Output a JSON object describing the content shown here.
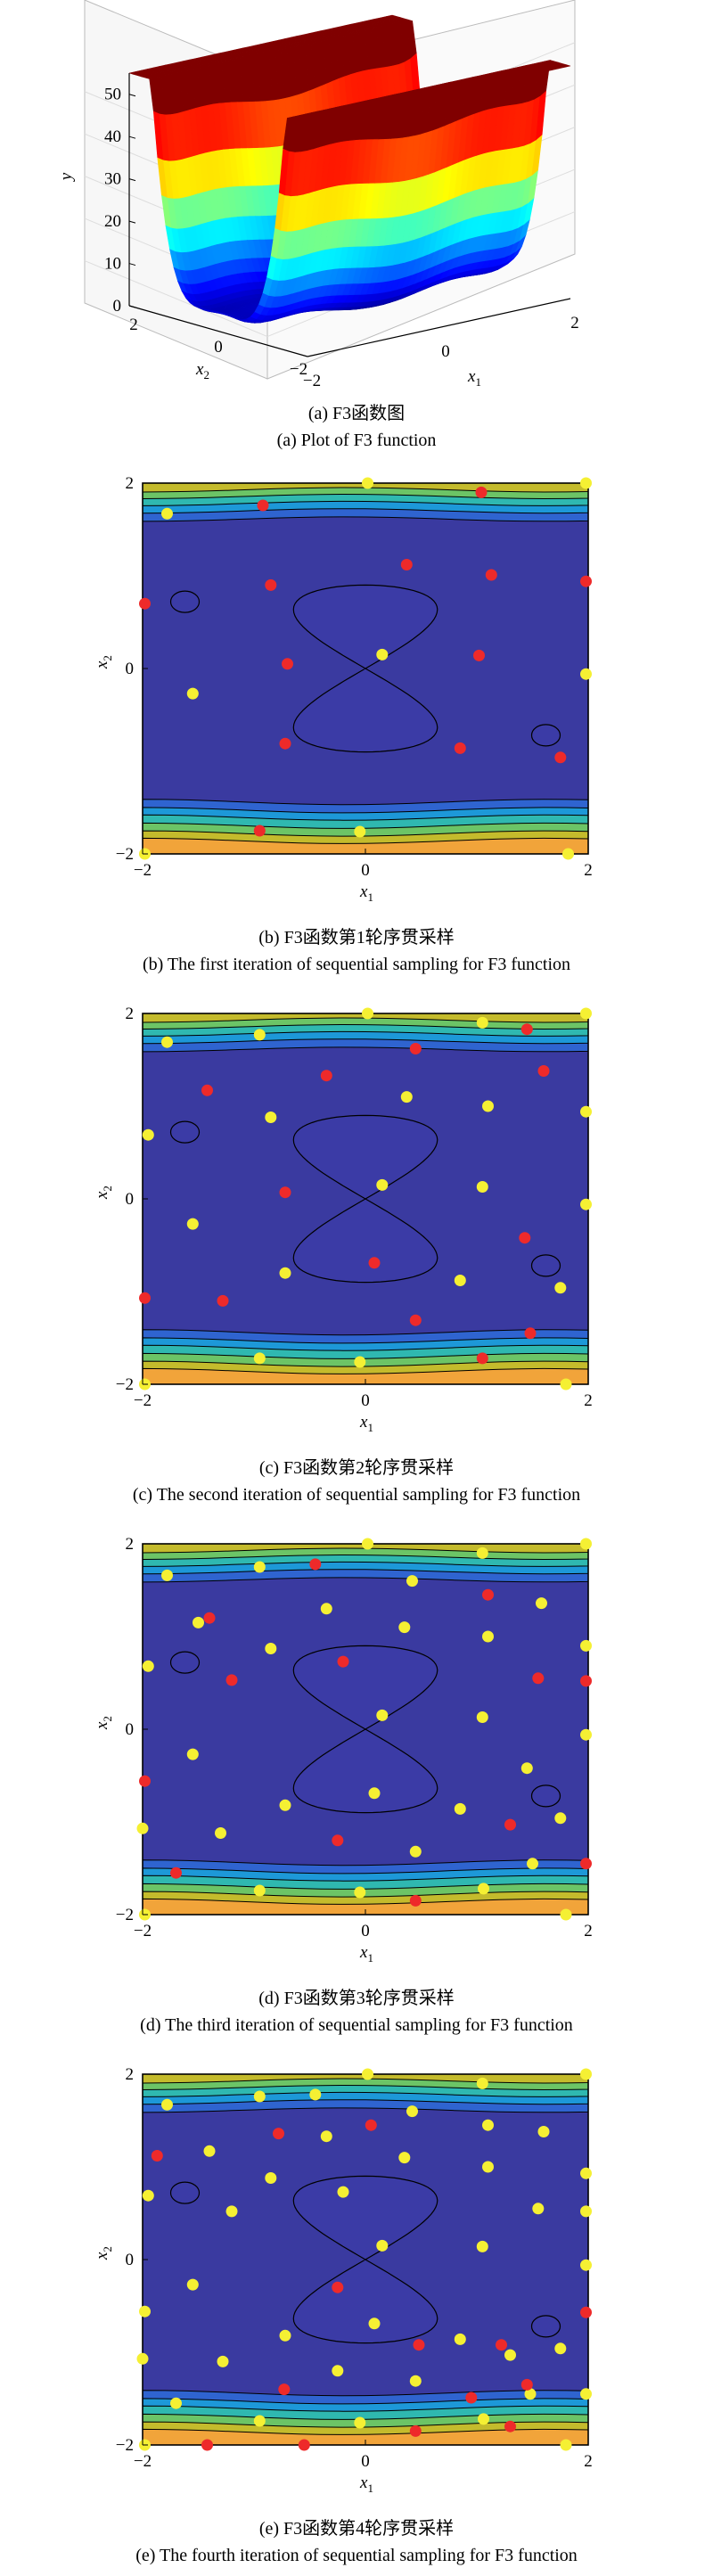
{
  "figure": {
    "panels": [
      {
        "caption_zh": "(a) F3函数图",
        "caption_en": "(a) Plot of F3 function"
      },
      {
        "caption_zh": "(b) F3函数第1轮序贯采样",
        "caption_en": "(b) The first iteration of sequential sampling for F3 function"
      },
      {
        "caption_zh": "(c) F3函数第2轮序贯采样",
        "caption_en": "(c) The second iteration of sequential sampling for F3 function"
      },
      {
        "caption_zh": "(d) F3函数第3轮序贯采样",
        "caption_en": "(d) The third iteration of sequential sampling for F3 function"
      },
      {
        "caption_zh": "(e) F3函数第4轮序贯采样",
        "caption_en": "(e) The fourth iteration of sequential sampling for F3 function"
      }
    ]
  },
  "colors": {
    "new_sample": "#ee2a2a",
    "existing_sample": "#f5f033",
    "contour_fill": [
      "#3a3aa0",
      "#2f64d0",
      "#1d98d8",
      "#2fb8b0",
      "#6cc466",
      "#c4bb2c",
      "#f1a43a",
      "#f5d222"
    ]
  },
  "chart_data": [
    {
      "type": "surface",
      "panel": "a",
      "xlabel": "x1",
      "ylabel": "x2",
      "zlabel": "y",
      "xlim": [
        -2,
        2
      ],
      "ylim": [
        -2,
        2
      ],
      "zlim": [
        0,
        55
      ],
      "x_ticks": [
        "2",
        "0",
        "-2"
      ],
      "y_ticks": [
        "-2",
        "0",
        "2"
      ],
      "z_ticks": [
        "0",
        "10",
        "20",
        "30",
        "40",
        "50"
      ],
      "colormap": "jet",
      "grid": true
    },
    {
      "type": "scatter",
      "panel": "b",
      "xlabel": "x1",
      "ylabel": "x2",
      "xlim": [
        -2,
        2
      ],
      "ylim": [
        -2,
        2
      ],
      "x_ticks": [
        "-2",
        "0",
        "2"
      ],
      "y_ticks": [
        "-2",
        "0",
        "2"
      ],
      "background": "filled contour",
      "new_points": [
        [
          -0.92,
          1.76
        ],
        [
          1.04,
          1.9
        ],
        [
          1.98,
          0.94
        ],
        [
          -0.85,
          0.9
        ],
        [
          0.37,
          1.12
        ],
        [
          1.13,
          1.01
        ],
        [
          -1.98,
          0.7
        ],
        [
          -0.7,
          0.05
        ],
        [
          1.02,
          0.14
        ],
        [
          -0.72,
          -0.81
        ],
        [
          0.85,
          -0.86
        ],
        [
          1.75,
          -0.96
        ],
        [
          -0.95,
          -1.75
        ]
      ],
      "existing_points": [
        [
          -1.78,
          1.67
        ],
        [
          0.02,
          2.0
        ],
        [
          1.98,
          2.0
        ],
        [
          0.15,
          0.15
        ],
        [
          -1.55,
          -0.27
        ],
        [
          1.98,
          -0.06
        ],
        [
          -1.98,
          -2.0
        ],
        [
          -0.05,
          -1.76
        ],
        [
          1.82,
          -2.0
        ]
      ]
    },
    {
      "type": "scatter",
      "panel": "c",
      "xlabel": "x1",
      "ylabel": "x2",
      "xlim": [
        -2,
        2
      ],
      "ylim": [
        -2,
        2
      ],
      "x_ticks": [
        "-2",
        "0",
        "2"
      ],
      "y_ticks": [
        "-2",
        "0",
        "2"
      ],
      "background": "filled contour",
      "new_points": [
        [
          1.45,
          1.83
        ],
        [
          0.45,
          1.62
        ],
        [
          -0.35,
          1.33
        ],
        [
          1.6,
          1.38
        ],
        [
          -1.42,
          1.17
        ],
        [
          -0.72,
          0.07
        ],
        [
          0.08,
          -0.69
        ],
        [
          1.43,
          -0.42
        ],
        [
          -1.98,
          -1.07
        ],
        [
          -1.28,
          -1.1
        ],
        [
          0.45,
          -1.31
        ],
        [
          1.48,
          -1.45
        ],
        [
          1.05,
          -1.72
        ]
      ],
      "existing_points": [
        [
          -1.78,
          1.69
        ],
        [
          -0.95,
          1.77
        ],
        [
          0.02,
          2.0
        ],
        [
          1.05,
          1.9
        ],
        [
          1.98,
          2.0
        ],
        [
          -0.85,
          0.88
        ],
        [
          0.37,
          1.1
        ],
        [
          1.1,
          1.0
        ],
        [
          1.98,
          0.94
        ],
        [
          -1.95,
          0.69
        ],
        [
          0.15,
          0.15
        ],
        [
          1.05,
          0.13
        ],
        [
          -1.55,
          -0.27
        ],
        [
          1.98,
          -0.06
        ],
        [
          -0.72,
          -0.8
        ],
        [
          0.85,
          -0.88
        ],
        [
          1.75,
          -0.96
        ],
        [
          -0.95,
          -1.72
        ],
        [
          -0.05,
          -1.76
        ],
        [
          -1.98,
          -2.0
        ],
        [
          1.8,
          -2.0
        ]
      ]
    },
    {
      "type": "scatter",
      "panel": "d",
      "xlabel": "x1",
      "ylabel": "x2",
      "xlim": [
        -2,
        2
      ],
      "ylim": [
        -2,
        2
      ],
      "x_ticks": [
        "-2",
        "0",
        "2"
      ],
      "y_ticks": [
        "-2",
        "0",
        "2"
      ],
      "background": "filled contour",
      "new_points": [
        [
          -0.45,
          1.78
        ],
        [
          1.1,
          1.45
        ],
        [
          -1.4,
          1.2
        ],
        [
          1.55,
          0.55
        ],
        [
          1.98,
          0.52
        ],
        [
          -1.2,
          0.53
        ],
        [
          -0.2,
          0.73
        ],
        [
          -1.98,
          -0.56
        ],
        [
          1.3,
          -1.03
        ],
        [
          -0.25,
          -1.2
        ],
        [
          1.98,
          -1.45
        ],
        [
          -1.7,
          -1.55
        ],
        [
          0.45,
          -1.85
        ]
      ],
      "existing_points": [
        [
          -1.78,
          1.66
        ],
        [
          -0.95,
          1.75
        ],
        [
          0.02,
          2.0
        ],
        [
          0.42,
          1.6
        ],
        [
          1.05,
          1.9
        ],
        [
          1.98,
          2.0
        ],
        [
          -0.35,
          1.3
        ],
        [
          1.58,
          1.36
        ],
        [
          -1.5,
          1.15
        ],
        [
          0.35,
          1.1
        ],
        [
          -0.85,
          0.87
        ],
        [
          1.1,
          1.0
        ],
        [
          1.98,
          0.9
        ],
        [
          -1.95,
          0.68
        ],
        [
          0.15,
          0.15
        ],
        [
          1.05,
          0.13
        ],
        [
          -1.55,
          -0.27
        ],
        [
          1.98,
          -0.06
        ],
        [
          -0.72,
          -0.82
        ],
        [
          0.08,
          -0.69
        ],
        [
          0.85,
          -0.86
        ],
        [
          1.75,
          -0.96
        ],
        [
          -1.3,
          -1.12
        ],
        [
          1.45,
          -0.42
        ],
        [
          -2.0,
          -1.07
        ],
        [
          0.45,
          -1.32
        ],
        [
          1.5,
          -1.45
        ],
        [
          -0.95,
          -1.74
        ],
        [
          -0.05,
          -1.76
        ],
        [
          1.06,
          -1.72
        ],
        [
          -1.98,
          -2.0
        ],
        [
          1.8,
          -2.0
        ]
      ]
    },
    {
      "type": "scatter",
      "panel": "e",
      "xlabel": "x1",
      "ylabel": "x2",
      "xlim": [
        -2,
        2
      ],
      "ylim": [
        -2,
        2
      ],
      "x_ticks": [
        "-2",
        "0",
        "2"
      ],
      "y_ticks": [
        "-2",
        "0",
        "2"
      ],
      "background": "filled contour",
      "new_points": [
        [
          0.05,
          1.45
        ],
        [
          -0.78,
          1.36
        ],
        [
          -1.87,
          1.12
        ],
        [
          -0.25,
          -0.3
        ],
        [
          0.48,
          -0.92
        ],
        [
          1.22,
          -0.92
        ],
        [
          -0.73,
          -1.4
        ],
        [
          0.95,
          -1.49
        ],
        [
          1.98,
          -0.57
        ],
        [
          1.45,
          -1.35
        ],
        [
          -1.42,
          -2.0
        ],
        [
          -0.55,
          -2.0
        ],
        [
          0.45,
          -1.85
        ],
        [
          1.3,
          -1.8
        ]
      ],
      "existing_points": [
        [
          -1.78,
          1.67
        ],
        [
          -0.95,
          1.76
        ],
        [
          0.02,
          2.0
        ],
        [
          -0.45,
          1.78
        ],
        [
          0.42,
          1.6
        ],
        [
          1.05,
          1.9
        ],
        [
          1.98,
          2.0
        ],
        [
          1.1,
          1.45
        ],
        [
          -0.35,
          1.33
        ],
        [
          1.6,
          1.38
        ],
        [
          -1.4,
          1.17
        ],
        [
          -0.2,
          0.73
        ],
        [
          0.35,
          1.1
        ],
        [
          -0.85,
          0.88
        ],
        [
          1.1,
          1.0
        ],
        [
          1.98,
          0.93
        ],
        [
          -1.95,
          0.69
        ],
        [
          1.55,
          0.55
        ],
        [
          -1.2,
          0.52
        ],
        [
          1.98,
          0.52
        ],
        [
          0.15,
          0.15
        ],
        [
          1.05,
          0.14
        ],
        [
          -1.55,
          -0.27
        ],
        [
          1.98,
          -0.06
        ],
        [
          -1.98,
          -0.56
        ],
        [
          -0.72,
          -0.82
        ],
        [
          0.08,
          -0.69
        ],
        [
          0.85,
          -0.86
        ],
        [
          1.75,
          -0.96
        ],
        [
          -1.28,
          -1.1
        ],
        [
          1.3,
          -1.03
        ],
        [
          -0.25,
          -1.2
        ],
        [
          -2.0,
          -1.07
        ],
        [
          0.45,
          -1.31
        ],
        [
          1.48,
          -1.45
        ],
        [
          -1.7,
          -1.55
        ],
        [
          -0.95,
          -1.74
        ],
        [
          -0.05,
          -1.76
        ],
        [
          1.06,
          -1.72
        ],
        [
          1.98,
          -1.45
        ],
        [
          -1.98,
          -2.0
        ],
        [
          1.8,
          -2.0
        ]
      ]
    }
  ]
}
